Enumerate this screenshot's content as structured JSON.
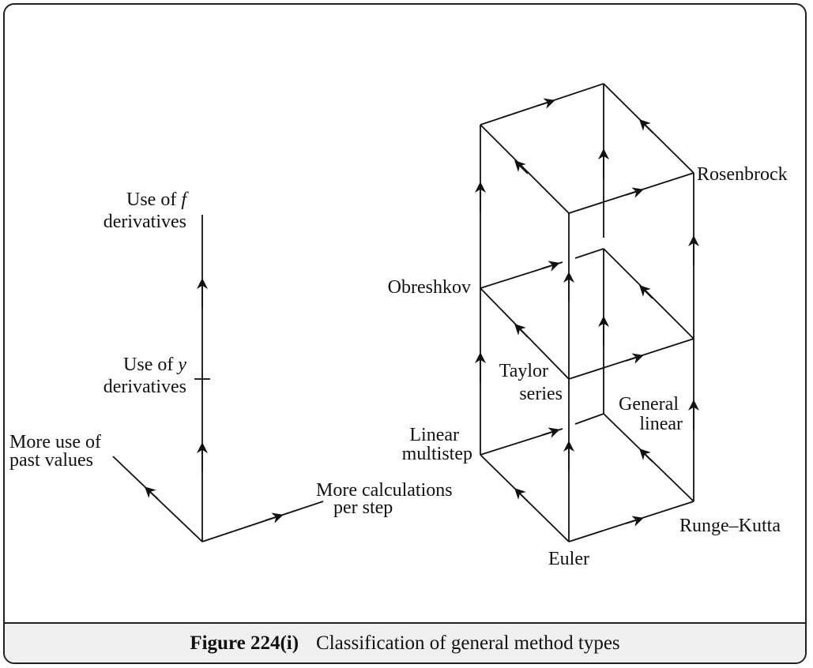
{
  "caption": {
    "number": "Figure 224(i)",
    "text": "Classification of general method types"
  },
  "axes": {
    "up_line1": "Use of ",
    "up_var": "f",
    "up_line2": "derivatives",
    "mid_line1": "Use of ",
    "mid_var": "y",
    "mid_line2": "derivatives",
    "left_line1": "More use of",
    "left_line2": "past values",
    "right_line1": "More calculations",
    "right_line2": "per step"
  },
  "methods": {
    "euler": "Euler",
    "runge_kutta": "Runge–Kutta",
    "linear_multistep_1": "Linear",
    "linear_multistep_2": "multistep",
    "general_linear_1": "General",
    "general_linear_2": "linear",
    "taylor_1": "Taylor",
    "taylor_2": "series",
    "obreshkov": "Obreshkov",
    "rosenbrock": "Rosenbrock"
  }
}
